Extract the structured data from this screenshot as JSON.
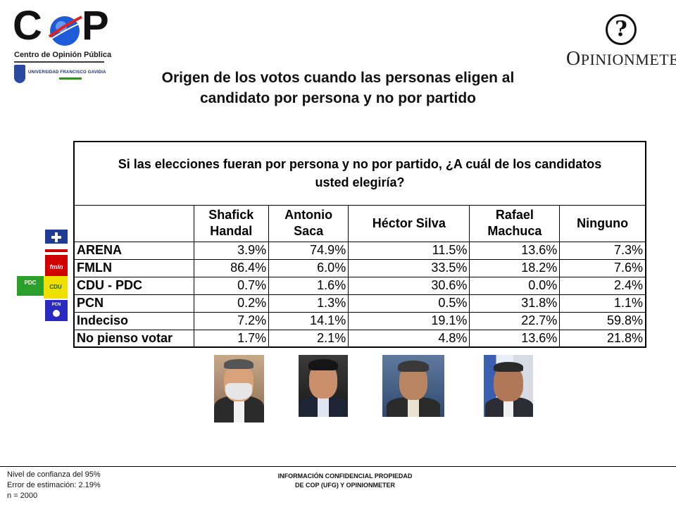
{
  "logos": {
    "cop_letters": "COP",
    "cop_name": "Centro de Opinión Pública",
    "ufg_name": "UNIVERSIDAD FRANCISCO GAVIDIA",
    "opinionmeter": "OPINIONMETER",
    "opinionmeter_first": "O",
    "opinionmeter_rest": "PINIONMETER",
    "opinionmeter_mark": "?"
  },
  "title": {
    "line1": "Origen de los votos cuando las personas eligen al",
    "line2": "candidato por persona y no por partido"
  },
  "table": {
    "question_line1": "Si las elecciones fueran por persona y no por partido, ¿A cuál de los candidatos",
    "question_line2": "usted elegiría?",
    "columns": [
      {
        "line1": "Shafick",
        "line2": "Handal"
      },
      {
        "line1": "Antonio",
        "line2": "Saca"
      },
      {
        "line1": "Héctor Silva",
        "line2": ""
      },
      {
        "line1": "Rafael",
        "line2": "Machuca"
      },
      {
        "line1": "Ninguno",
        "line2": ""
      }
    ],
    "rows": [
      {
        "label": "ARENA",
        "values": [
          "3.9%",
          "74.9%",
          "11.5%",
          "13.6%",
          "7.3%"
        ]
      },
      {
        "label": "FMLN",
        "values": [
          "86.4%",
          "6.0%",
          "33.5%",
          "18.2%",
          "7.6%"
        ]
      },
      {
        "label": "CDU - PDC",
        "values": [
          "0.7%",
          "1.6%",
          "30.6%",
          "0.0%",
          "2.4%"
        ]
      },
      {
        "label": "PCN",
        "values": [
          "0.2%",
          "1.3%",
          "0.5%",
          "31.8%",
          "1.1%"
        ]
      },
      {
        "label": "Indeciso",
        "values": [
          "7.2%",
          "14.1%",
          "19.1%",
          "22.7%",
          "59.8%"
        ]
      },
      {
        "label": "No pienso votar",
        "values": [
          "1.7%",
          "2.1%",
          "4.8%",
          "13.6%",
          "21.8%"
        ]
      }
    ]
  },
  "party_logos": {
    "arena": "ARENA",
    "fmln": "fmln",
    "pdc": "PDC",
    "cdu": "CDU",
    "pcn": "PCN"
  },
  "footer": {
    "left_line1": "Nivel de confianza del 95%",
    "left_line2": "Error de estimación: 2.19%",
    "left_line3": "n = 2000",
    "center_line1": "INFORMACIÓN CONFIDENCIAL PROPIEDAD",
    "center_line2": "DE COP (UFG) Y OPINIONMETER"
  },
  "colors": {
    "arena_blue": "#1f3a93",
    "fmln_red": "#d00000",
    "pdc_green": "#2aa02a",
    "cdu_yellow": "#f0e000",
    "pcn_blue": "#2a2ac0",
    "cop_orbit_blue": "#1e5bd6",
    "cop_orbit_red": "#e0221b"
  }
}
